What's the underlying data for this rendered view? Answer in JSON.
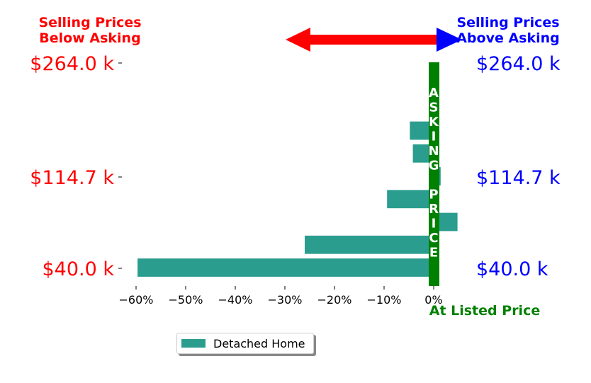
{
  "chart_data": {
    "type": "bar",
    "orientation": "horizontal",
    "header_left": [
      "Selling Prices",
      "Below Asking"
    ],
    "header_right": [
      "Selling Prices",
      "Above Asking"
    ],
    "left_tick_labels": [
      "$264.0 k",
      "$114.7 k",
      "$40.0 k"
    ],
    "right_tick_labels": [
      "$264.0 k",
      "$114.7 k",
      "$40.0 k"
    ],
    "x_ticks": [
      -60,
      -50,
      -40,
      -30,
      -20,
      -10,
      0
    ],
    "x_tick_labels": [
      "−60%",
      "−50%",
      "−40%",
      "−30%",
      "−20%",
      "−10%",
      "0%"
    ],
    "xlim": [
      -63,
      2.5
    ],
    "asking_letters": [
      "A",
      "S",
      "K",
      "I",
      "N",
      "G",
      "",
      "P",
      "R",
      "I",
      "C",
      "E"
    ],
    "at_listed_label": "At Listed Price",
    "series": [
      {
        "name": "Detached Home",
        "values": [
          -59.7,
          -26.0,
          4.8,
          -9.4,
          1.4,
          -4.2,
          -4.8,
          -0.5
        ]
      }
    ],
    "colors": {
      "bar": "#2a9d8f",
      "asking_line": "#008000",
      "left_text": "#ff0000",
      "right_text": "#0000ff",
      "arrow_left": "#ff0000",
      "arrow_right": "#0000ff",
      "listed_text": "#008000"
    }
  }
}
